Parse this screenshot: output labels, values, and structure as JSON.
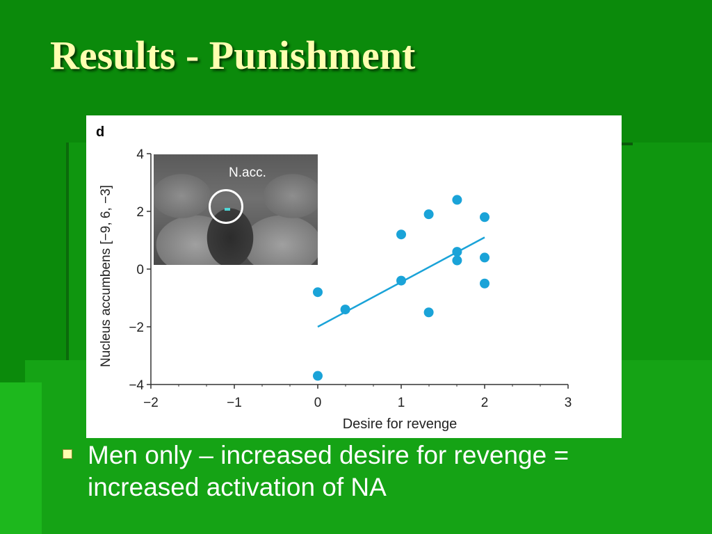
{
  "slide": {
    "title": "Results - Punishment",
    "bullet": "Men only – increased desire for revenge = increased activation of NA"
  },
  "colors": {
    "background": "#0b8a0b",
    "title": "#ffffb0",
    "marker": "#1aa3d8"
  },
  "chart_data": {
    "type": "scatter",
    "panel_label": "d",
    "xlabel": "Desire for revenge",
    "ylabel": "Nucleus accumbens [−9, 6, −3]",
    "xlim": [
      -2,
      3
    ],
    "ylim": [
      -4,
      4
    ],
    "xticks": [
      "−2",
      "−1",
      "0",
      "1",
      "2",
      "3"
    ],
    "yticks": [
      "−4",
      "−2",
      "0",
      "2",
      "4"
    ],
    "inset_label": "N.acc.",
    "series": [
      {
        "points": [
          {
            "x": 0,
            "y": -0.8
          },
          {
            "x": 0,
            "y": -3.7
          },
          {
            "x": 0.33,
            "y": -1.4
          },
          {
            "x": 1,
            "y": 1.2
          },
          {
            "x": 1,
            "y": -0.4
          },
          {
            "x": 1.33,
            "y": 1.9
          },
          {
            "x": 1.33,
            "y": -1.5
          },
          {
            "x": 1.67,
            "y": 2.4
          },
          {
            "x": 1.67,
            "y": 0.6
          },
          {
            "x": 1.67,
            "y": 0.3
          },
          {
            "x": 2,
            "y": 1.8
          },
          {
            "x": 2,
            "y": 0.4
          },
          {
            "x": 2,
            "y": -0.5
          }
        ]
      }
    ],
    "trendline": {
      "x": [
        0,
        2
      ],
      "y": [
        -2.0,
        1.1
      ]
    }
  }
}
